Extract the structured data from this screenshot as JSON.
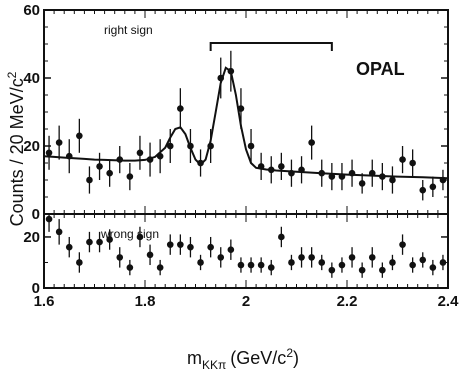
{
  "chart_data": [
    {
      "type": "scatter",
      "panel": "top",
      "xlabel": "m",
      "xlabel_sub": "KKπ",
      "xlabel_unit": "(GeV/c",
      "xlabel_sup": "2",
      "xlabel_close": ")",
      "ylabel": "Counts / 20 MeV/c",
      "ylabel_sup": "2",
      "xlim": [
        1.6,
        2.4
      ],
      "ylim": [
        0,
        60
      ],
      "x_ticks": [
        1.6,
        1.8,
        2.0,
        2.2,
        2.4
      ],
      "x_tick_labels": [
        "1.6",
        "1.8",
        "2",
        "2.2",
        "2.4"
      ],
      "y_ticks": [
        0,
        20,
        40,
        60
      ],
      "y_tick_labels": [
        "0",
        "20",
        "40",
        "60"
      ],
      "label": "right sign",
      "brand": "OPAL",
      "bracket_x": [
        1.93,
        2.17
      ],
      "points": [
        {
          "x": 1.61,
          "y": 18,
          "err": 5
        },
        {
          "x": 1.63,
          "y": 21,
          "err": 5
        },
        {
          "x": 1.65,
          "y": 17,
          "err": 5
        },
        {
          "x": 1.67,
          "y": 23,
          "err": 5
        },
        {
          "x": 1.69,
          "y": 10,
          "err": 4
        },
        {
          "x": 1.71,
          "y": 14,
          "err": 4
        },
        {
          "x": 1.73,
          "y": 12,
          "err": 4
        },
        {
          "x": 1.75,
          "y": 16,
          "err": 4
        },
        {
          "x": 1.77,
          "y": 11,
          "err": 4
        },
        {
          "x": 1.79,
          "y": 18,
          "err": 5
        },
        {
          "x": 1.81,
          "y": 16,
          "err": 5
        },
        {
          "x": 1.83,
          "y": 17,
          "err": 5
        },
        {
          "x": 1.85,
          "y": 20,
          "err": 5
        },
        {
          "x": 1.87,
          "y": 31,
          "err": 6
        },
        {
          "x": 1.89,
          "y": 20,
          "err": 5
        },
        {
          "x": 1.91,
          "y": 15,
          "err": 4
        },
        {
          "x": 1.93,
          "y": 20,
          "err": 5
        },
        {
          "x": 1.95,
          "y": 40,
          "err": 6
        },
        {
          "x": 1.97,
          "y": 42,
          "err": 6
        },
        {
          "x": 1.99,
          "y": 31,
          "err": 6
        },
        {
          "x": 2.01,
          "y": 20,
          "err": 5
        },
        {
          "x": 2.03,
          "y": 14,
          "err": 4
        },
        {
          "x": 2.05,
          "y": 13,
          "err": 4
        },
        {
          "x": 2.07,
          "y": 14,
          "err": 4
        },
        {
          "x": 2.09,
          "y": 12,
          "err": 4
        },
        {
          "x": 2.11,
          "y": 13,
          "err": 4
        },
        {
          "x": 2.13,
          "y": 21,
          "err": 5
        },
        {
          "x": 2.15,
          "y": 12,
          "err": 4
        },
        {
          "x": 2.17,
          "y": 11,
          "err": 4
        },
        {
          "x": 2.19,
          "y": 11,
          "err": 4
        },
        {
          "x": 2.21,
          "y": 12,
          "err": 4
        },
        {
          "x": 2.23,
          "y": 9,
          "err": 3
        },
        {
          "x": 2.25,
          "y": 12,
          "err": 4
        },
        {
          "x": 2.27,
          "y": 11,
          "err": 4
        },
        {
          "x": 2.29,
          "y": 10,
          "err": 4
        },
        {
          "x": 2.31,
          "y": 16,
          "err": 4
        },
        {
          "x": 2.33,
          "y": 15,
          "err": 4
        },
        {
          "x": 2.35,
          "y": 7,
          "err": 3
        },
        {
          "x": 2.37,
          "y": 8,
          "err": 3
        },
        {
          "x": 2.39,
          "y": 10,
          "err": 3
        }
      ],
      "fit": {
        "x": [
          1.6,
          1.62,
          1.64,
          1.66,
          1.68,
          1.7,
          1.72,
          1.74,
          1.76,
          1.78,
          1.8,
          1.82,
          1.84,
          1.85,
          1.86,
          1.87,
          1.88,
          1.89,
          1.9,
          1.91,
          1.92,
          1.93,
          1.94,
          1.95,
          1.96,
          1.97,
          1.98,
          1.99,
          2.0,
          2.01,
          2.02,
          2.04,
          2.06,
          2.1,
          2.15,
          2.2,
          2.25,
          2.3,
          2.35,
          2.4
        ],
        "y": [
          17,
          16.8,
          16.6,
          16.4,
          16.2,
          16.0,
          15.9,
          15.8,
          15.7,
          15.7,
          15.9,
          16.8,
          19.5,
          22.5,
          25,
          25.5,
          23.5,
          19.5,
          16,
          14.5,
          16,
          21.5,
          30,
          38.5,
          43,
          42,
          35,
          26,
          19,
          15,
          13.6,
          13.1,
          12.8,
          12.4,
          12.0,
          11.6,
          11.3,
          11.0,
          10.8,
          10.5
        ]
      }
    },
    {
      "type": "scatter",
      "panel": "bottom",
      "xlim": [
        1.6,
        2.4
      ],
      "ylim": [
        0,
        29
      ],
      "y_ticks": [
        0,
        20
      ],
      "y_tick_labels": [
        "0",
        "20"
      ],
      "label": "wrong sign",
      "points": [
        {
          "x": 1.61,
          "y": 27,
          "err": 5
        },
        {
          "x": 1.63,
          "y": 22,
          "err": 5
        },
        {
          "x": 1.65,
          "y": 16,
          "err": 4
        },
        {
          "x": 1.67,
          "y": 10,
          "err": 4
        },
        {
          "x": 1.69,
          "y": 18,
          "err": 4
        },
        {
          "x": 1.71,
          "y": 18,
          "err": 4
        },
        {
          "x": 1.73,
          "y": 19,
          "err": 4
        },
        {
          "x": 1.75,
          "y": 12,
          "err": 4
        },
        {
          "x": 1.77,
          "y": 8,
          "err": 3
        },
        {
          "x": 1.79,
          "y": 20,
          "err": 4
        },
        {
          "x": 1.81,
          "y": 13,
          "err": 4
        },
        {
          "x": 1.83,
          "y": 8,
          "err": 3
        },
        {
          "x": 1.85,
          "y": 17,
          "err": 4
        },
        {
          "x": 1.87,
          "y": 17,
          "err": 4
        },
        {
          "x": 1.89,
          "y": 16,
          "err": 4
        },
        {
          "x": 1.91,
          "y": 10,
          "err": 3
        },
        {
          "x": 1.93,
          "y": 16,
          "err": 4
        },
        {
          "x": 1.95,
          "y": 12,
          "err": 4
        },
        {
          "x": 1.97,
          "y": 15,
          "err": 4
        },
        {
          "x": 1.99,
          "y": 9,
          "err": 3
        },
        {
          "x": 2.01,
          "y": 9,
          "err": 3
        },
        {
          "x": 2.03,
          "y": 9,
          "err": 3
        },
        {
          "x": 2.05,
          "y": 8,
          "err": 3
        },
        {
          "x": 2.07,
          "y": 20,
          "err": 4
        },
        {
          "x": 2.09,
          "y": 10,
          "err": 3
        },
        {
          "x": 2.11,
          "y": 12,
          "err": 4
        },
        {
          "x": 2.13,
          "y": 12,
          "err": 4
        },
        {
          "x": 2.15,
          "y": 10,
          "err": 3
        },
        {
          "x": 2.17,
          "y": 7,
          "err": 3
        },
        {
          "x": 2.19,
          "y": 9,
          "err": 3
        },
        {
          "x": 2.21,
          "y": 12,
          "err": 4
        },
        {
          "x": 2.23,
          "y": 7,
          "err": 3
        },
        {
          "x": 2.25,
          "y": 12,
          "err": 4
        },
        {
          "x": 2.27,
          "y": 7,
          "err": 3
        },
        {
          "x": 2.29,
          "y": 10,
          "err": 3
        },
        {
          "x": 2.31,
          "y": 17,
          "err": 4
        },
        {
          "x": 2.33,
          "y": 9,
          "err": 3
        },
        {
          "x": 2.35,
          "y": 11,
          "err": 3
        },
        {
          "x": 2.37,
          "y": 8,
          "err": 3
        },
        {
          "x": 2.39,
          "y": 10,
          "err": 3
        }
      ]
    }
  ]
}
